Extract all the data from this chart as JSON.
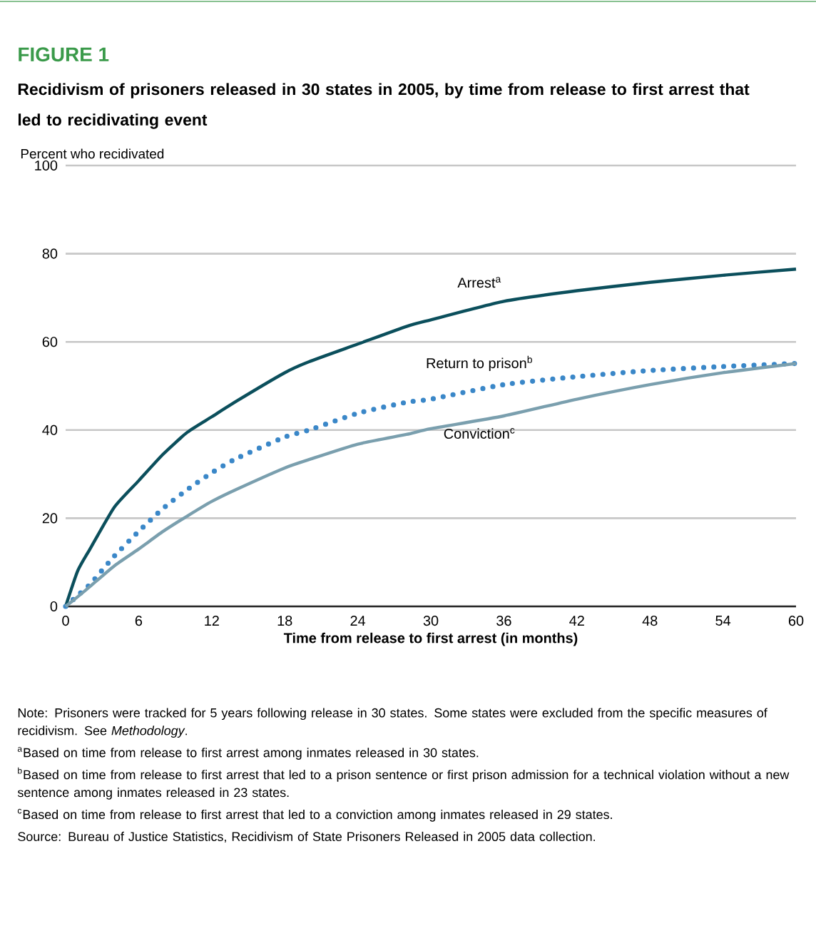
{
  "chart_data": {
    "type": "line",
    "title": "FIGURE 1",
    "subtitle": "Recidivism of prisoners released in 30 states in 2005, by time from release to first arrest that led to recidivating event",
    "ylabel": "Percent who recidivated",
    "xlabel": "Time from release to first arrest (in months)",
    "x": [
      0,
      1,
      2,
      4,
      6,
      8,
      10,
      12,
      14,
      18,
      20,
      24,
      28,
      30,
      36,
      42,
      48,
      54,
      60
    ],
    "series": [
      {
        "name": "Arrest$^{a}$",
        "color": "#0b4f5c",
        "line_style": "solid",
        "values": [
          0,
          8.1,
          13,
          22.5,
          28.5,
          34.5,
          39.5,
          43,
          46.5,
          53,
          55.5,
          59.5,
          63.5,
          65,
          69.2,
          71.6,
          73.5,
          75.1,
          76.5
        ]
      },
      {
        "name": "Return to prison$^{b}$",
        "color": "#3a87c8",
        "line_style": "dotted",
        "values": [
          0,
          2.5,
          5,
          11.4,
          17,
          22.2,
          26.5,
          30.3,
          33.5,
          38.4,
          40,
          43.8,
          46.3,
          47,
          50.3,
          52.1,
          53.5,
          54.4,
          55.1
        ]
      },
      {
        "name": "Conviction$^{c}$",
        "color": "#7a9fae",
        "line_style": "solid",
        "values": [
          0,
          2.2,
          4.5,
          9.2,
          13,
          17,
          20.5,
          23.8,
          26.5,
          31.4,
          33.3,
          36.8,
          39,
          40.3,
          43.2,
          47,
          50.3,
          53,
          55.1
        ]
      }
    ],
    "xlim": [
      0,
      60
    ],
    "xticks": [
      0,
      6,
      12,
      18,
      24,
      30,
      36,
      42,
      48,
      54,
      60
    ],
    "ylim": [
      0,
      100
    ],
    "yticks": [
      0,
      20,
      40,
      60,
      80,
      100
    ],
    "grid": "y",
    "legend": false,
    "marker": "none",
    "annotations": [
      "Note: Prisoners were tracked for 5 years following release in 30 states. Some states were excluded from the specific measures of recidivism. See *Methodology*.",
      "$^{a}$Based on time from release to first arrest among inmates released in 30 states.",
      "$^{b}$Based on time from release to first arrest that led to a prison sentence or first prison admission for a technical violation without a new sentence among inmates released in 23 states.",
      "$^{c}$Based on time from release to first arrest that led to a conviction among inmates released in 29 states.",
      "Source: Bureau of Justice Statistics, Recidivism of State Prisoners Released in 2005 data collection."
    ]
  }
}
